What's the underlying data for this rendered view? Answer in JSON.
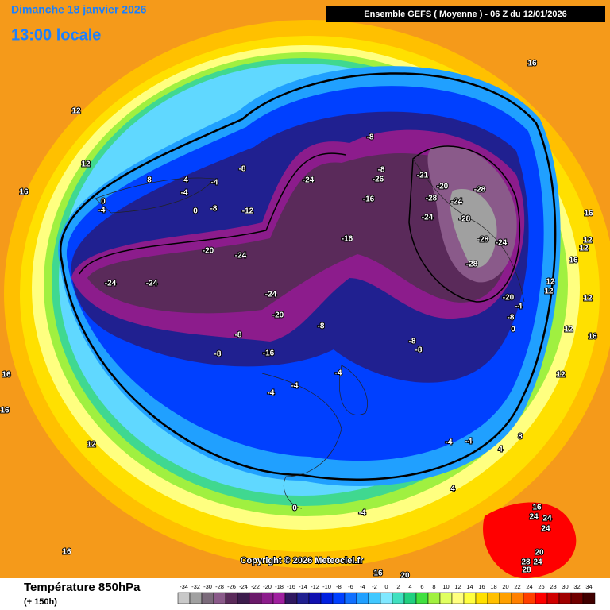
{
  "header": {
    "date_title": "Dimanche 18 janvier 2026",
    "time": "13:00 locale",
    "model_info": "Ensemble GEFS  ( Moyenne )  -  06 Z du 12/01/2026"
  },
  "footer": {
    "copyright": "Copyright © 2026 Meteociel.fr"
  },
  "legend": {
    "title": "Température 850hPa",
    "lead": "(+ 150h)",
    "ticks": [
      -34,
      -32,
      -30,
      -28,
      -26,
      -24,
      -22,
      -20,
      -18,
      -16,
      -14,
      -12,
      -10,
      -8,
      -6,
      -4,
      -2,
      0,
      2,
      4,
      6,
      8,
      10,
      12,
      14,
      16,
      18,
      20,
      22,
      24,
      26,
      28,
      30,
      32,
      34
    ],
    "colors": [
      "#c8c8c8",
      "#a0a0a0",
      "#7a6a7a",
      "#8a5a8a",
      "#5a2a5a",
      "#3c1c4c",
      "#6a1a6a",
      "#8c1c8c",
      "#a020a0",
      "#301860",
      "#202090",
      "#1010b0",
      "#0020e0",
      "#0040ff",
      "#1070ff",
      "#20a0ff",
      "#40c8ff",
      "#80e8ff",
      "#40e0c0",
      "#20d080",
      "#40e040",
      "#a0f040",
      "#e0ff60",
      "#ffff80",
      "#ffff40",
      "#ffe000",
      "#ffc000",
      "#ffa000",
      "#ff8000",
      "#ff4000",
      "#ff0000",
      "#d00000",
      "#a00000",
      "#700000",
      "#400000"
    ]
  },
  "contour_labels": [
    -24,
    -24,
    -24,
    -24,
    -20,
    -12,
    -8,
    -8,
    -8,
    -8,
    -26,
    -16,
    -16,
    -24,
    -20,
    -8,
    -16,
    -8,
    -8,
    -21,
    -20,
    -28,
    -28,
    -24,
    -24,
    -28,
    -28,
    -24,
    -28,
    -20,
    -8,
    -4,
    0,
    -8,
    -8,
    -4,
    -4,
    -4,
    -4,
    -4,
    4,
    8,
    0,
    -4,
    4,
    12,
    12,
    16,
    16,
    16,
    12,
    12,
    16,
    12,
    12,
    16,
    12,
    16,
    16,
    12,
    16,
    16,
    20,
    16,
    24,
    24,
    24,
    20,
    24,
    28,
    28,
    4,
    8,
    -4,
    -4,
    0,
    0,
    -4,
    12,
    12
  ]
}
